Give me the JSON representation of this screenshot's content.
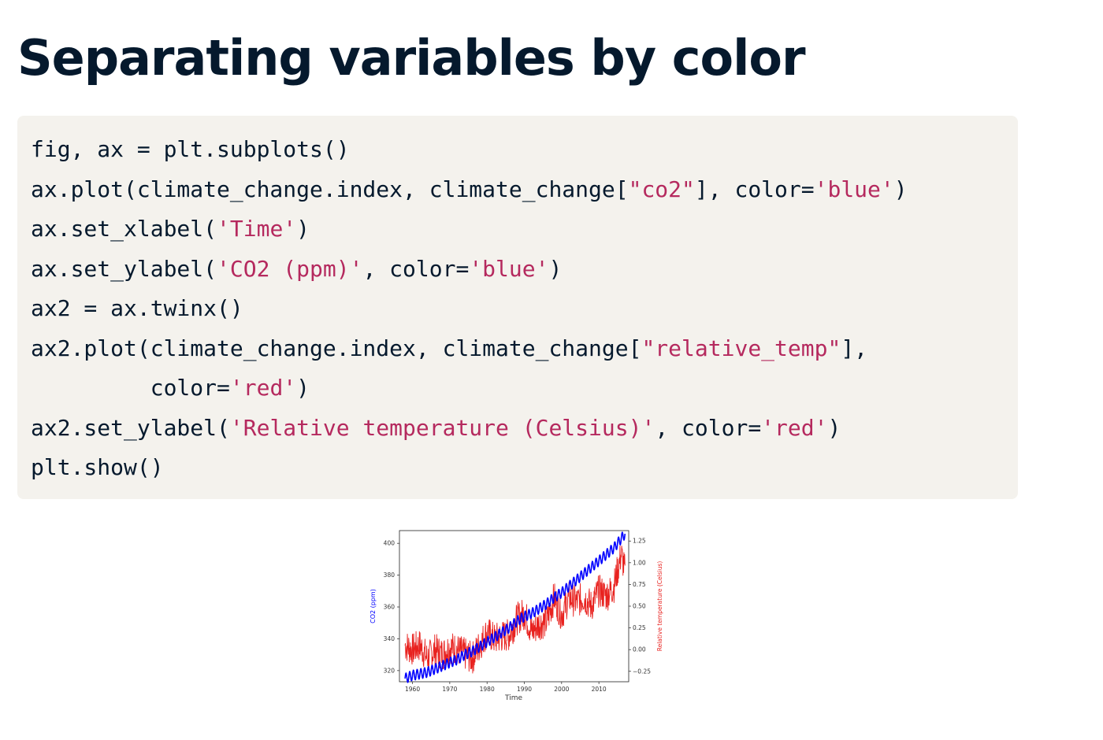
{
  "slide": {
    "title": "Separating variables by color"
  },
  "code": {
    "lines": [
      [
        {
          "t": "fig, ax = plt.subplots()",
          "k": "plain"
        }
      ],
      [
        {
          "t": "ax.plot(climate_change.index, climate_change[",
          "k": "plain"
        },
        {
          "t": "\"co2\"",
          "k": "str"
        },
        {
          "t": "], color=",
          "k": "plain"
        },
        {
          "t": "'blue'",
          "k": "str"
        },
        {
          "t": ")",
          "k": "plain"
        }
      ],
      [
        {
          "t": "ax.set_xlabel(",
          "k": "plain"
        },
        {
          "t": "'Time'",
          "k": "str"
        },
        {
          "t": ")",
          "k": "plain"
        }
      ],
      [
        {
          "t": "ax.set_ylabel(",
          "k": "plain"
        },
        {
          "t": "'CO2 (ppm)'",
          "k": "str"
        },
        {
          "t": ", color=",
          "k": "plain"
        },
        {
          "t": "'blue'",
          "k": "str"
        },
        {
          "t": ")",
          "k": "plain"
        }
      ],
      [
        {
          "t": "ax2 = ax.twinx()",
          "k": "plain"
        }
      ],
      [
        {
          "t": "ax2.plot(climate_change.index, climate_change[",
          "k": "plain"
        },
        {
          "t": "\"relative_temp\"",
          "k": "str"
        },
        {
          "t": "],",
          "k": "plain"
        }
      ],
      [
        {
          "t": "         color=",
          "k": "plain"
        },
        {
          "t": "'red'",
          "k": "str"
        },
        {
          "t": ")",
          "k": "plain"
        }
      ],
      [
        {
          "t": "ax2.set_ylabel(",
          "k": "plain"
        },
        {
          "t": "'Relative temperature (Celsius)'",
          "k": "str"
        },
        {
          "t": ", color=",
          "k": "plain"
        },
        {
          "t": "'red'",
          "k": "str"
        },
        {
          "t": ")",
          "k": "plain"
        }
      ],
      [
        {
          "t": "plt.show()",
          "k": "plain"
        }
      ]
    ]
  },
  "colors": {
    "title": "#05192d",
    "code_background": "#f4f2ed",
    "code_string": "#b5295e",
    "co2_series": "#0000ff",
    "temp_series": "#e8221f"
  },
  "chart_data": {
    "type": "line",
    "title": "",
    "xlabel": "Time",
    "ylabel": "CO2 (ppm)",
    "ylabel_right": "Relative temperature (Celsius)",
    "xlim": [
      1956.5,
      2018
    ],
    "ylim": [
      313,
      408
    ],
    "ylim_right": [
      -0.37,
      1.37
    ],
    "xticks": [
      1960,
      1970,
      1980,
      1990,
      2000,
      2010
    ],
    "yticks": [
      320,
      340,
      360,
      380,
      400
    ],
    "yticks_right": [
      -0.25,
      0.0,
      0.25,
      0.5,
      0.75,
      1.0,
      1.25
    ],
    "ytick_labels_right": [
      "−0.25",
      "0.00",
      "0.25",
      "0.50",
      "0.75",
      "1.00",
      "1.25"
    ],
    "grid": false,
    "legend": "none",
    "series": [
      {
        "name": "co2",
        "axis": "left",
        "color": "blue",
        "x": [
          1958,
          1960,
          1962,
          1964,
          1966,
          1968,
          1970,
          1972,
          1974,
          1976,
          1978,
          1980,
          1982,
          1984,
          1986,
          1988,
          1990,
          1992,
          1994,
          1996,
          1998,
          2000,
          2002,
          2004,
          2006,
          2008,
          2010,
          2012,
          2014,
          2016,
          2017
        ],
        "y": [
          315,
          317,
          318,
          319,
          321,
          323,
          325,
          327,
          330,
          332,
          335,
          338,
          341,
          344,
          347,
          351,
          354,
          356,
          359,
          362,
          366,
          369,
          373,
          377,
          381,
          385,
          389,
          393,
          397,
          403,
          406
        ]
      },
      {
        "name": "relative_temp",
        "axis": "right",
        "color": "red",
        "x": [
          1958,
          1960,
          1962,
          1964,
          1966,
          1968,
          1970,
          1972,
          1974,
          1976,
          1978,
          1980,
          1982,
          1984,
          1986,
          1988,
          1990,
          1992,
          1994,
          1996,
          1998,
          2000,
          2002,
          2004,
          2006,
          2008,
          2010,
          2012,
          2014,
          2016,
          2017
        ],
        "y": [
          0.05,
          0.0,
          0.05,
          -0.1,
          0.0,
          -0.05,
          0.03,
          0.0,
          -0.05,
          -0.1,
          0.05,
          0.2,
          0.12,
          0.15,
          0.17,
          0.35,
          0.42,
          0.2,
          0.3,
          0.32,
          0.6,
          0.4,
          0.6,
          0.55,
          0.6,
          0.5,
          0.68,
          0.62,
          0.72,
          1.1,
          0.9
        ]
      }
    ]
  }
}
